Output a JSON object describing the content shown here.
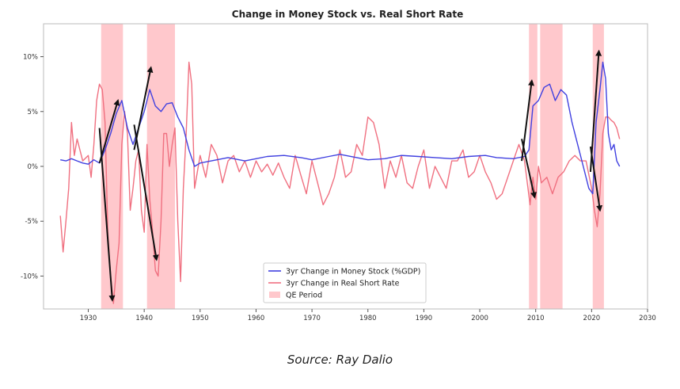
{
  "source_caption": "Source: Ray Dalio",
  "chart_data": {
    "type": "line",
    "title": "Change in Money Stock vs. Real Short Rate",
    "xlabel": "",
    "ylabel": "",
    "xlim": [
      1922,
      2030
    ],
    "ylim": [
      -13,
      13
    ],
    "x_ticks": [
      1930,
      1940,
      1950,
      1960,
      1970,
      1980,
      1990,
      2000,
      2010,
      2020,
      2030
    ],
    "y_ticks": [
      {
        "value": 10,
        "label": "10%"
      },
      {
        "value": 5,
        "label": "5%"
      },
      {
        "value": 0,
        "label": "0%"
      },
      {
        "value": -5,
        "label": "-5%"
      },
      {
        "value": -10,
        "label": "-10%"
      }
    ],
    "grid": false,
    "legend_position": "bottom-center",
    "legend": [
      {
        "label": "3yr Change in Money Stock (%GDP)",
        "kind": "line",
        "color": "#4040e0"
      },
      {
        "label": "3yr Change in Real Short Rate",
        "kind": "line",
        "color": "#f07080"
      },
      {
        "label": "QE Period",
        "kind": "patch",
        "color": "#ffc8cc"
      }
    ],
    "qe_periods": [
      [
        1932.3,
        1936.2
      ],
      [
        1940.5,
        1945.5
      ],
      [
        2008.8,
        2010.3
      ],
      [
        2010.8,
        2014.8
      ],
      [
        2020.2,
        2022.2
      ]
    ],
    "series": [
      {
        "name": "3yr Change in Money Stock (%GDP)",
        "color": "#4040e0",
        "x": [
          1925,
          1926,
          1927,
          1928,
          1929,
          1930,
          1931,
          1932,
          1933,
          1934,
          1935,
          1936,
          1937,
          1938,
          1939,
          1940,
          1941,
          1942,
          1943,
          1944,
          1945,
          1946,
          1947,
          1948,
          1949,
          1950,
          1952,
          1955,
          1958,
          1960,
          1962,
          1965,
          1968,
          1970,
          1973,
          1975,
          1978,
          1980,
          1983,
          1986,
          1989,
          1992,
          1995,
          1998,
          2001,
          2003,
          2006,
          2008,
          2008.8,
          2009.5,
          2010.5,
          2011.5,
          2012.5,
          2013.5,
          2014.5,
          2015.5,
          2016.5,
          2017.5,
          2018.5,
          2019.5,
          2020.2,
          2020.8,
          2021.5,
          2022.0,
          2022.5,
          2023.0,
          2023.5,
          2024.0,
          2024.5,
          2025.0
        ],
        "values": [
          0.6,
          0.5,
          0.7,
          0.5,
          0.3,
          0.2,
          0.6,
          0.3,
          1.5,
          3.0,
          4.8,
          6.0,
          3.5,
          2.0,
          3.5,
          5.0,
          7.0,
          5.5,
          5.0,
          5.7,
          5.8,
          4.5,
          3.5,
          1.5,
          0.0,
          0.3,
          0.5,
          0.8,
          0.5,
          0.7,
          0.9,
          1.0,
          0.8,
          0.6,
          0.9,
          1.1,
          0.8,
          0.6,
          0.7,
          1.0,
          0.9,
          0.8,
          0.7,
          0.9,
          1.0,
          0.8,
          0.7,
          0.9,
          1.5,
          5.5,
          6.0,
          7.2,
          7.5,
          6.0,
          7.0,
          6.5,
          4.0,
          2.0,
          0.0,
          -2.0,
          -2.5,
          4.0,
          7.0,
          9.5,
          8.0,
          3.0,
          1.5,
          2.0,
          0.5,
          0.0
        ]
      },
      {
        "name": "3yr Change in Real Short Rate",
        "color": "#f07080",
        "x": [
          1925,
          1925.5,
          1926,
          1926.5,
          1927,
          1927.5,
          1928,
          1929,
          1930,
          1930.5,
          1931,
          1931.5,
          1932,
          1932.5,
          1933,
          1933.5,
          1934,
          1934.5,
          1935,
          1935.5,
          1936,
          1936.5,
          1937,
          1937.5,
          1938,
          1938.5,
          1939,
          1939.5,
          1940,
          1940.5,
          1941,
          1941.5,
          1942,
          1942.5,
          1943,
          1943.5,
          1944,
          1944.5,
          1945,
          1945.5,
          1946,
          1946.5,
          1947,
          1947.5,
          1948,
          1948.5,
          1949,
          1950,
          1951,
          1952,
          1953,
          1954,
          1955,
          1956,
          1957,
          1958,
          1959,
          1960,
          1961,
          1962,
          1963,
          1964,
          1965,
          1966,
          1967,
          1968,
          1969,
          1970,
          1971,
          1972,
          1973,
          1974,
          1975,
          1976,
          1977,
          1978,
          1979,
          1980,
          1981,
          1982,
          1983,
          1984,
          1985,
          1986,
          1987,
          1988,
          1989,
          1990,
          1991,
          1992,
          1993,
          1994,
          1995,
          1996,
          1997,
          1998,
          1999,
          2000,
          2001,
          2002,
          2003,
          2004,
          2005,
          2006,
          2007,
          2008,
          2009,
          2009.5,
          2010,
          2010.5,
          2011,
          2012,
          2013,
          2014,
          2015,
          2016,
          2017,
          2018,
          2019,
          2020,
          2020.5,
          2021,
          2021.5,
          2022,
          2022.5,
          2023,
          2023.5,
          2024,
          2024.5,
          2025
        ],
        "values": [
          -4.5,
          -7.8,
          -5.0,
          -2.0,
          4.0,
          1.0,
          2.5,
          0.5,
          1.0,
          -1.0,
          2.0,
          6.0,
          7.5,
          7.0,
          4.0,
          -6.0,
          -10.0,
          -12.5,
          -9.5,
          -7.0,
          2.0,
          5.0,
          3.0,
          -4.0,
          -2.0,
          0.5,
          1.5,
          -4.0,
          -6.0,
          2.0,
          -3.0,
          -6.0,
          -9.5,
          -10.0,
          -5.0,
          3.0,
          3.0,
          0.0,
          2.0,
          3.5,
          -5.0,
          -10.5,
          -2.0,
          3.0,
          9.5,
          7.5,
          -2.0,
          1.0,
          -1.0,
          2.0,
          1.0,
          -1.5,
          0.5,
          1.0,
          -0.5,
          0.5,
          -1.0,
          0.5,
          -0.5,
          0.2,
          -0.8,
          0.3,
          -1.0,
          -2.0,
          1.0,
          -0.8,
          -2.5,
          0.5,
          -1.5,
          -3.5,
          -2.5,
          -1.0,
          1.5,
          -1.0,
          -0.5,
          2.0,
          1.0,
          4.5,
          4.0,
          2.0,
          -2.0,
          0.5,
          -1.0,
          1.0,
          -1.5,
          -2.0,
          0.0,
          1.5,
          -2.0,
          0.0,
          -1.0,
          -2.0,
          0.5,
          0.5,
          1.5,
          -1.0,
          -0.5,
          1.0,
          -0.5,
          -1.5,
          -3.0,
          -2.5,
          -1.0,
          0.5,
          2.0,
          0.5,
          -3.5,
          -1.0,
          -3.0,
          0.0,
          -1.5,
          -1.0,
          -2.5,
          -1.0,
          -0.5,
          0.5,
          1.0,
          0.5,
          0.5,
          -2.0,
          -4.0,
          -5.5,
          -2.5,
          3.0,
          4.5,
          4.5,
          4.2,
          4.0,
          3.5,
          2.5
        ]
      }
    ],
    "annotation_arrows": [
      {
        "from": [
          1932,
          0.3
        ],
        "to": [
          1935.3,
          6.0
        ],
        "direction": "up"
      },
      {
        "from": [
          1932,
          3.5
        ],
        "to": [
          1934.3,
          -12.2
        ],
        "direction": "down"
      },
      {
        "from": [
          1938.2,
          1.5
        ],
        "to": [
          1941.2,
          9.0
        ],
        "direction": "up"
      },
      {
        "from": [
          1938.2,
          3.8
        ],
        "to": [
          1942.2,
          -8.5
        ],
        "direction": "down"
      },
      {
        "from": [
          2007.5,
          0.5
        ],
        "to": [
          2009.3,
          7.8
        ],
        "direction": "up"
      },
      {
        "from": [
          2007.5,
          2.5
        ],
        "to": [
          2009.8,
          -2.8
        ],
        "direction": "down"
      },
      {
        "from": [
          2019.8,
          -0.5
        ],
        "to": [
          2021.3,
          10.5
        ],
        "direction": "up"
      },
      {
        "from": [
          2019.8,
          1.8
        ],
        "to": [
          2021.5,
          -4.0
        ],
        "direction": "down"
      }
    ]
  }
}
